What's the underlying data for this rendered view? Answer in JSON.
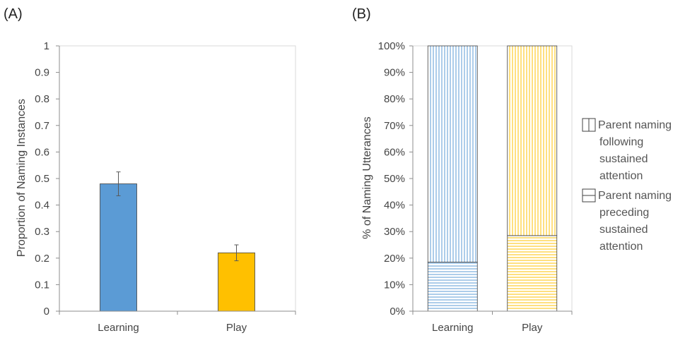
{
  "chart_data": [
    {
      "panel_label": "(A)",
      "type": "bar",
      "categories": [
        "Learning",
        "Play"
      ],
      "values": [
        0.48,
        0.22
      ],
      "errors": [
        0.045,
        0.03
      ],
      "colors": [
        "#5b9bd5",
        "#ffc000"
      ],
      "ylabel": "Proportion of Naming Instances",
      "ylim": [
        0,
        1
      ],
      "yticks": [
        "0",
        "0.1",
        "0.2",
        "0.3",
        "0.4",
        "0.5",
        "0.6",
        "0.7",
        "0.8",
        "0.9",
        "1"
      ],
      "grid": false
    },
    {
      "panel_label": "(B)",
      "type": "bar",
      "stacked": true,
      "categories": [
        "Learning",
        "Play"
      ],
      "series": [
        {
          "name": "Parent naming preceding sustained attention",
          "legend_lines": [
            "Parent naming",
            "preceding",
            "sustained",
            "attention"
          ],
          "pattern": "horizontal-lines",
          "values": [
            18.5,
            28.5
          ]
        },
        {
          "name": "Parent naming following sustained attention",
          "legend_lines": [
            "Parent naming",
            "following",
            "sustained",
            "attention"
          ],
          "pattern": "vertical-lines",
          "values": [
            81.5,
            71.5
          ]
        }
      ],
      "colors": [
        "#5b9bd5",
        "#ffc000"
      ],
      "ylabel": "% of Naming Utterances",
      "ylim": [
        0,
        100
      ],
      "yticks": [
        "0%",
        "10%",
        "20%",
        "30%",
        "40%",
        "50%",
        "60%",
        "70%",
        "80%",
        "90%",
        "100%"
      ],
      "legend_position": "right",
      "grid": false
    }
  ]
}
